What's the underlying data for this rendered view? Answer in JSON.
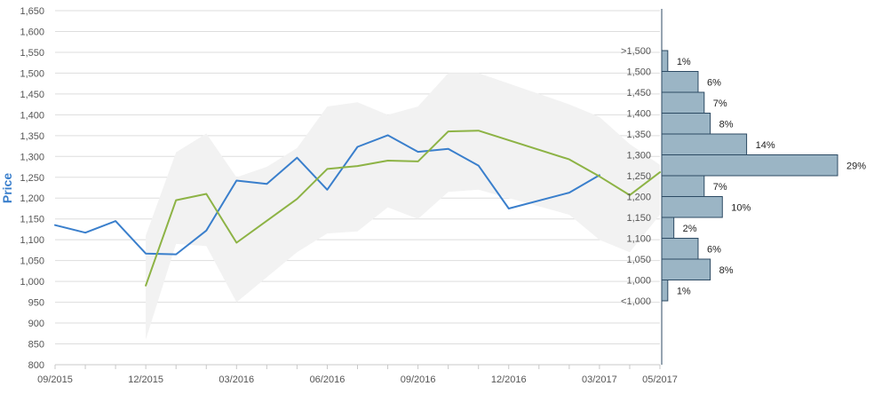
{
  "chart_data": {
    "type": "line",
    "ylabel": "Price",
    "ylim": [
      800,
      1650
    ],
    "y_ticks": [
      "800",
      "850",
      "900",
      "950",
      "1,000",
      "1,050",
      "1,100",
      "1,150",
      "1,200",
      "1,250",
      "1,300",
      "1,350",
      "1,400",
      "1,450",
      "1,500",
      "1,550",
      "1,600",
      "1,650"
    ],
    "x_ticks": [
      {
        "label": "09/2015",
        "i": 0
      },
      {
        "label": "12/2015",
        "i": 3
      },
      {
        "label": "03/2016",
        "i": 6
      },
      {
        "label": "06/2016",
        "i": 9
      },
      {
        "label": "09/2016",
        "i": 12
      },
      {
        "label": "12/2016",
        "i": 15
      },
      {
        "label": "03/2017",
        "i": 18
      },
      {
        "label": "05/2017",
        "i": 20
      }
    ],
    "x_range": [
      0,
      20
    ],
    "grid": true,
    "series": [
      {
        "color": "#3a7fcc",
        "points": [
          [
            0,
            1135
          ],
          [
            1,
            1117
          ],
          [
            2,
            1145
          ],
          [
            3,
            1067
          ],
          [
            4,
            1065
          ],
          [
            5,
            1122
          ],
          [
            6,
            1242
          ],
          [
            7,
            1234
          ],
          [
            8,
            1297
          ],
          [
            9,
            1220
          ],
          [
            10,
            1323
          ],
          [
            11,
            1351
          ],
          [
            12,
            1311
          ],
          [
            13,
            1318
          ],
          [
            14,
            1278
          ],
          [
            15,
            1175
          ],
          [
            17,
            1213
          ],
          [
            18,
            1255
          ]
        ]
      },
      {
        "color": "#8db345",
        "points": [
          [
            3,
            990
          ],
          [
            4,
            1195
          ],
          [
            5,
            1210
          ],
          [
            6,
            1093
          ],
          [
            8,
            1198
          ],
          [
            9,
            1270
          ],
          [
            10,
            1277
          ],
          [
            11,
            1290
          ],
          [
            12,
            1288
          ],
          [
            13,
            1360
          ],
          [
            14,
            1362
          ],
          [
            17,
            1293
          ],
          [
            18,
            1252
          ],
          [
            19,
            1207
          ],
          [
            20,
            1262
          ]
        ]
      }
    ],
    "band": {
      "color": "#f2f2f2",
      "upper": [
        [
          3,
          1110
        ],
        [
          4,
          1310
        ],
        [
          5,
          1355
        ],
        [
          6,
          1250
        ],
        [
          7,
          1275
        ],
        [
          8,
          1320
        ],
        [
          9,
          1420
        ],
        [
          10,
          1430
        ],
        [
          11,
          1400
        ],
        [
          12,
          1420
        ],
        [
          13,
          1500
        ],
        [
          14,
          1500
        ],
        [
          17,
          1425
        ],
        [
          18,
          1395
        ],
        [
          19,
          1330
        ],
        [
          20,
          1280
        ]
      ],
      "lower": [
        [
          20,
          1160
        ],
        [
          19,
          1070
        ],
        [
          18,
          1100
        ],
        [
          17,
          1160
        ],
        [
          14,
          1220
        ],
        [
          13,
          1215
        ],
        [
          12,
          1150
        ],
        [
          11,
          1178
        ],
        [
          10,
          1120
        ],
        [
          9,
          1115
        ],
        [
          8,
          1070
        ],
        [
          7,
          1010
        ],
        [
          6,
          950
        ],
        [
          5,
          1085
        ],
        [
          4,
          1090
        ],
        [
          3,
          860
        ]
      ]
    },
    "histogram": {
      "bar_color": "#9bb5c5",
      "bar_stroke": "#2c4a63",
      "bins": [
        {
          "label": ">1,500",
          "value": 1,
          "text": "1%"
        },
        {
          "label": "1,500",
          "value": 6,
          "text": "6%"
        },
        {
          "label": "1,450",
          "value": 7,
          "text": "7%"
        },
        {
          "label": "1,400",
          "value": 8,
          "text": "8%"
        },
        {
          "label": "1,350",
          "value": 14,
          "text": "14%"
        },
        {
          "label": "1,300",
          "value": 29,
          "text": "29%"
        },
        {
          "label": "1,250",
          "value": 7,
          "text": "7%"
        },
        {
          "label": "1,200",
          "value": 10,
          "text": "10%"
        },
        {
          "label": "1,150",
          "value": 2,
          "text": "2%"
        },
        {
          "label": "1,100",
          "value": 6,
          "text": "6%"
        },
        {
          "label": "1,050",
          "value": 8,
          "text": "8%"
        },
        {
          "label": "1,000",
          "value": 1,
          "text": "1%"
        },
        {
          "label": "<1,000",
          "value": 0,
          "text": ""
        }
      ]
    }
  }
}
